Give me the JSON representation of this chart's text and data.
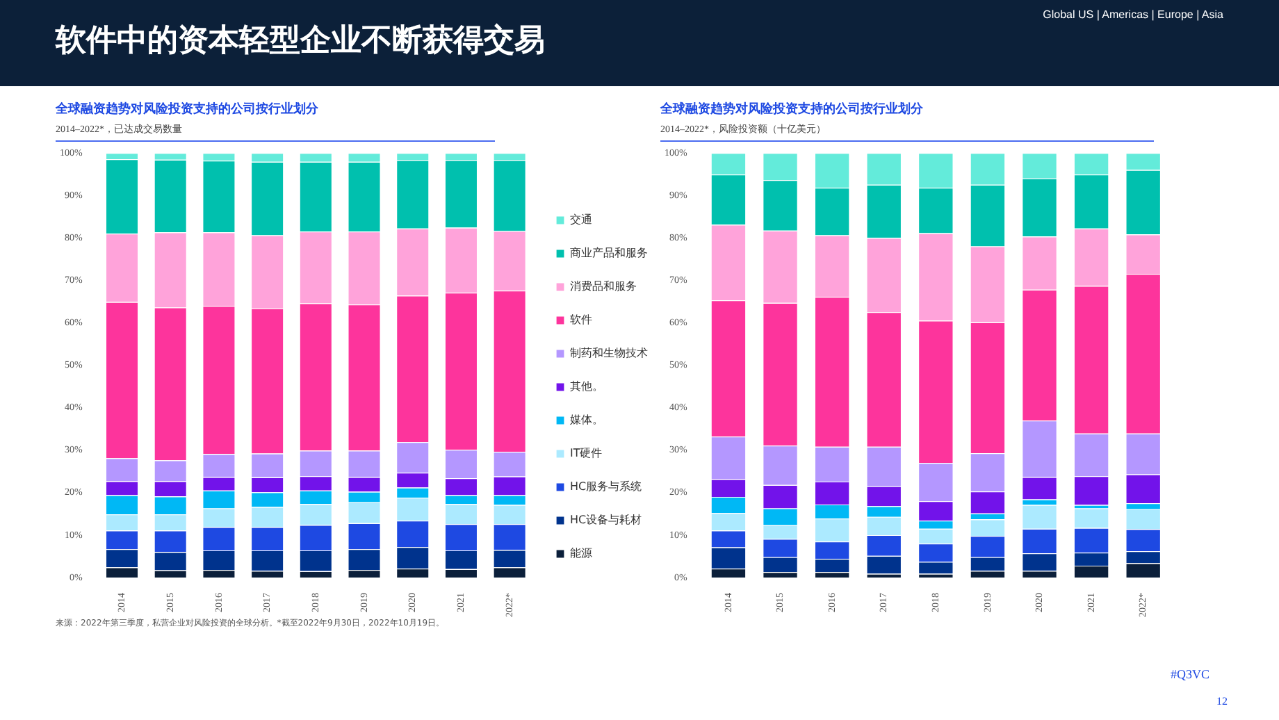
{
  "chart_data": [
    {
      "type": "bar",
      "title": "全球融资趋势对风险投资支持的公司按行业划分",
      "subtitle": "2014–2022*，已达成交易数量",
      "stacked": true,
      "legend": "right",
      "grid": false,
      "annotations": [
        "软件中的资本轻型企业不断获得交易",
        "Global US | Americas | Europe | Asia",
        "来源：2022年第三季度，私营企业对风险投资的全球分析。*截至2022年9月30日，2022年10月19日。",
        "#Q3VC",
        "12"
      ],
      "categories": [
        "2014",
        "2015",
        "2016",
        "2017",
        "2018",
        "2019",
        "2020",
        "2021",
        "2022*"
      ],
      "ylim": [
        0,
        100
      ],
      "yticks": [
        {
          "value": 0,
          "label": "0%"
        },
        {
          "value": 10,
          "label": "10%"
        },
        {
          "value": 20,
          "label": "20%"
        },
        {
          "value": 30,
          "label": "30%"
        },
        {
          "value": 40,
          "label": "40%"
        },
        {
          "value": 50,
          "label": "50%"
        },
        {
          "value": 60,
          "label": "60%"
        },
        {
          "value": 70,
          "label": "70%"
        },
        {
          "value": 80,
          "label": "80%"
        },
        {
          "value": 90,
          "label": "90%"
        },
        {
          "value": 100,
          "label": "100%"
        }
      ],
      "series": [
        {
          "name": "能源",
          "color": "#0b1f3a",
          "values": [
            2.4,
            1.7,
            1.8,
            1.6,
            1.5,
            1.8,
            2.1,
            2.0,
            2.4
          ]
        },
        {
          "name": "HC设备与耗材",
          "color": "#00338d",
          "values": [
            4.3,
            4.3,
            4.6,
            4.8,
            4.9,
            4.9,
            5.1,
            4.4,
            4.1
          ]
        },
        {
          "name": "HC服务与系统",
          "color": "#1e49e2",
          "values": [
            4.4,
            5.1,
            5.5,
            5.5,
            6.0,
            6.1,
            6.2,
            6.2,
            6.1
          ]
        },
        {
          "name": "IT硬件",
          "color": "#aceaff",
          "values": [
            3.8,
            3.8,
            4.4,
            4.7,
            4.9,
            4.9,
            5.4,
            4.7,
            4.5
          ]
        },
        {
          "name": "媒体。",
          "color": "#00b8f5",
          "values": [
            4.5,
            4.2,
            4.2,
            3.5,
            3.2,
            2.5,
            2.4,
            2.1,
            2.3
          ]
        },
        {
          "name": "其他。",
          "color": "#7213ea",
          "values": [
            3.3,
            3.6,
            3.2,
            3.5,
            3.4,
            3.5,
            3.5,
            4.0,
            4.4
          ]
        },
        {
          "name": "制药和生物技术",
          "color": "#b497ff",
          "values": [
            5.4,
            4.9,
            5.4,
            5.6,
            6.0,
            6.2,
            7.2,
            6.7,
            5.8
          ]
        },
        {
          "name": "软件",
          "color": "#fd349c",
          "values": [
            36.8,
            36.0,
            34.9,
            34.2,
            34.7,
            34.4,
            34.5,
            37.0,
            38.0
          ]
        },
        {
          "name": "消费品和服务",
          "color": "#ffa3da",
          "values": [
            16.1,
            17.7,
            17.3,
            17.2,
            16.9,
            17.2,
            15.8,
            15.3,
            14.0
          ]
        },
        {
          "name": "商业产品和服务",
          "color": "#00c0ae",
          "values": [
            17.5,
            17.1,
            16.9,
            17.3,
            16.4,
            16.4,
            16.1,
            15.9,
            16.7
          ]
        },
        {
          "name": "交通",
          "color": "#63ebda",
          "values": [
            1.5,
            1.6,
            1.8,
            2.1,
            2.1,
            2.1,
            1.7,
            1.7,
            1.7
          ]
        }
      ]
    },
    {
      "type": "bar",
      "title": "全球融资趋势对风险投资支持的公司按行业划分",
      "subtitle": "2014–2022*，风险投资额（十亿美元）",
      "stacked": true,
      "grid": false,
      "categories": [
        "2014",
        "2015",
        "2016",
        "2017",
        "2018",
        "2019",
        "2020",
        "2021",
        "2022*"
      ],
      "ylim": [
        0,
        100
      ],
      "yticks": [
        {
          "value": 0,
          "label": "0%"
        },
        {
          "value": 10,
          "label": "10%"
        },
        {
          "value": 20,
          "label": "20%"
        },
        {
          "value": 30,
          "label": "30%"
        },
        {
          "value": 40,
          "label": "40%"
        },
        {
          "value": 50,
          "label": "50%"
        },
        {
          "value": 60,
          "label": "60%"
        },
        {
          "value": 70,
          "label": "70%"
        },
        {
          "value": 80,
          "label": "80%"
        },
        {
          "value": 90,
          "label": "90%"
        },
        {
          "value": 100,
          "label": "100%"
        }
      ],
      "series": [
        {
          "color": "#0b1f3a",
          "values": [
            2.1,
            1.3,
            1.3,
            0.9,
            0.9,
            1.6,
            1.6,
            2.8,
            3.4
          ]
        },
        {
          "color": "#00338d",
          "values": [
            5.0,
            3.5,
            3.1,
            4.2,
            2.8,
            3.2,
            4.1,
            3.1,
            2.8
          ]
        },
        {
          "color": "#1e49e2",
          "values": [
            4.0,
            4.3,
            4.1,
            4.9,
            4.3,
            5.0,
            5.8,
            5.8,
            5.2
          ]
        },
        {
          "color": "#aceaff",
          "values": [
            4.1,
            3.2,
            5.4,
            4.3,
            3.5,
            3.9,
            5.6,
            4.6,
            4.7
          ]
        },
        {
          "color": "#00b8f5",
          "values": [
            3.8,
            4.0,
            3.3,
            2.5,
            1.9,
            1.4,
            1.3,
            0.8,
            1.4
          ]
        },
        {
          "color": "#7213ea",
          "values": [
            4.2,
            5.5,
            5.4,
            4.7,
            4.6,
            5.2,
            5.3,
            6.8,
            6.8
          ]
        },
        {
          "color": "#b497ff",
          "values": [
            10.0,
            9.3,
            8.2,
            9.3,
            9.0,
            9.0,
            13.3,
            10.0,
            9.6
          ]
        },
        {
          "color": "#fd349c",
          "values": [
            32.1,
            33.6,
            35.3,
            31.7,
            33.5,
            30.8,
            30.8,
            34.8,
            37.6
          ]
        },
        {
          "color": "#ffa3da",
          "values": [
            17.8,
            17.0,
            14.5,
            17.5,
            20.6,
            17.9,
            12.5,
            13.5,
            9.3
          ]
        },
        {
          "color": "#00c0ae",
          "values": [
            11.8,
            11.9,
            11.2,
            12.5,
            10.7,
            14.5,
            13.7,
            12.7,
            15.2
          ]
        },
        {
          "color": "#63ebda",
          "values": [
            5.1,
            6.4,
            8.2,
            7.5,
            8.2,
            7.5,
            6.0,
            5.1,
            4.0
          ]
        }
      ]
    }
  ]
}
